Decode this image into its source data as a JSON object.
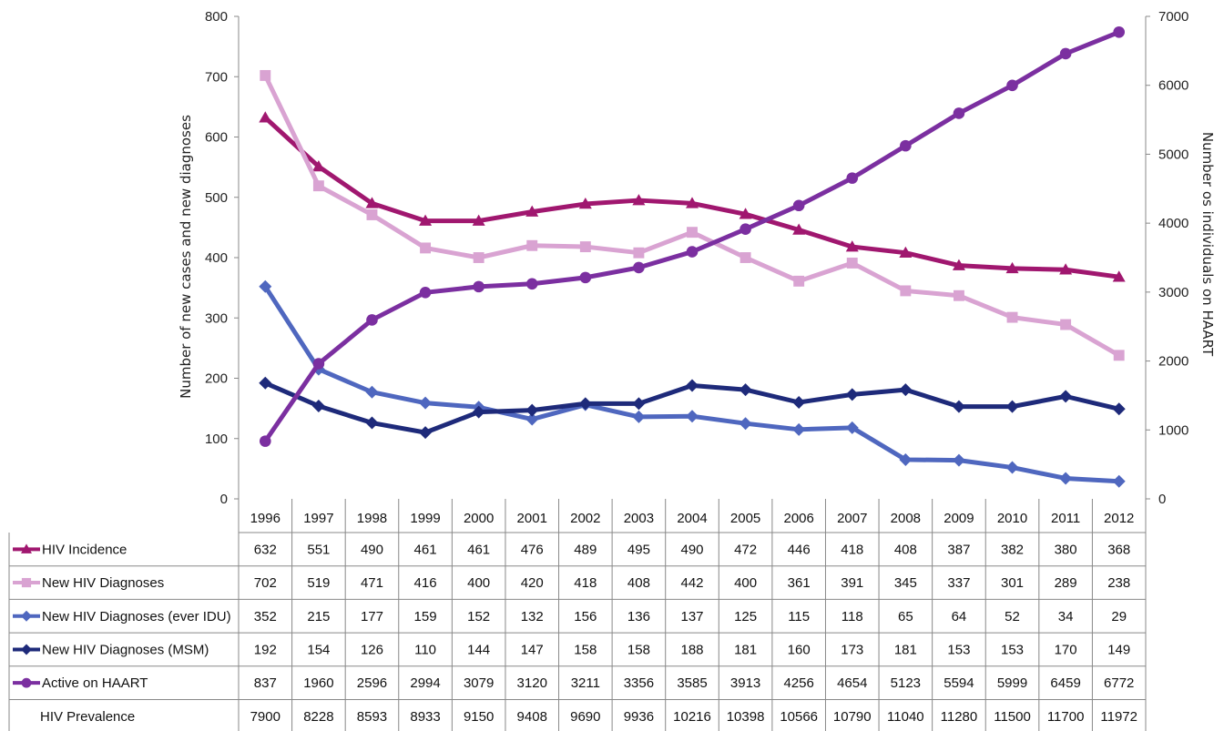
{
  "chart_data": {
    "type": "line",
    "title": "",
    "ylabel_left": "Number of new cases and new diagnoses",
    "ylabel_right": "Number os individuals on HAART",
    "ylim_left": [
      0,
      800
    ],
    "ylim_right": [
      0,
      7000
    ],
    "yticks_left": [
      "0",
      "100",
      "200",
      "300",
      "400",
      "500",
      "600",
      "700",
      "800"
    ],
    "yticks_right": [
      "0",
      "1000",
      "2000",
      "3000",
      "4000",
      "5000",
      "6000",
      "7000"
    ],
    "grid": false,
    "categories": [
      "1996",
      "1997",
      "1998",
      "1999",
      "2000",
      "2001",
      "2002",
      "2003",
      "2004",
      "2005",
      "2006",
      "2007",
      "2008",
      "2009",
      "2010",
      "2011",
      "2012"
    ],
    "series": [
      {
        "name": "HIV Incidence",
        "axis": "left",
        "color": "#a0176f",
        "marker": "triangle",
        "values": [
          632,
          551,
          490,
          461,
          461,
          476,
          489,
          495,
          490,
          472,
          446,
          418,
          408,
          387,
          382,
          380,
          368
        ]
      },
      {
        "name": "New HIV Diagnoses",
        "axis": "left",
        "color": "#d9a3d2",
        "marker": "square",
        "values": [
          702,
          519,
          471,
          416,
          400,
          420,
          418,
          408,
          442,
          400,
          361,
          391,
          345,
          337,
          301,
          289,
          238
        ]
      },
      {
        "name": "New HIV Diagnoses (ever IDU)",
        "axis": "left",
        "color": "#4f67bf",
        "marker": "diamond",
        "values": [
          352,
          215,
          177,
          159,
          152,
          132,
          156,
          136,
          137,
          125,
          115,
          118,
          65,
          64,
          52,
          34,
          29
        ]
      },
      {
        "name": "New HIV Diagnoses (MSM)",
        "axis": "left",
        "color": "#1e2a7a",
        "marker": "diamond",
        "values": [
          192,
          154,
          126,
          110,
          144,
          147,
          158,
          158,
          188,
          181,
          160,
          173,
          181,
          153,
          153,
          170,
          149
        ]
      },
      {
        "name": "Active on HAART",
        "axis": "right",
        "color": "#7b2fa0",
        "marker": "circle",
        "values": [
          837,
          1960,
          2596,
          2994,
          3079,
          3120,
          3211,
          3356,
          3585,
          3913,
          4256,
          4654,
          5123,
          5594,
          5999,
          6459,
          6772
        ]
      }
    ],
    "table_extra_rows": [
      {
        "name": "HIV Prevalence",
        "values": [
          7900,
          8228,
          8593,
          8933,
          9150,
          9408,
          9690,
          9936,
          10216,
          10398,
          10566,
          10790,
          11040,
          11280,
          11500,
          11700,
          11972
        ]
      }
    ]
  }
}
